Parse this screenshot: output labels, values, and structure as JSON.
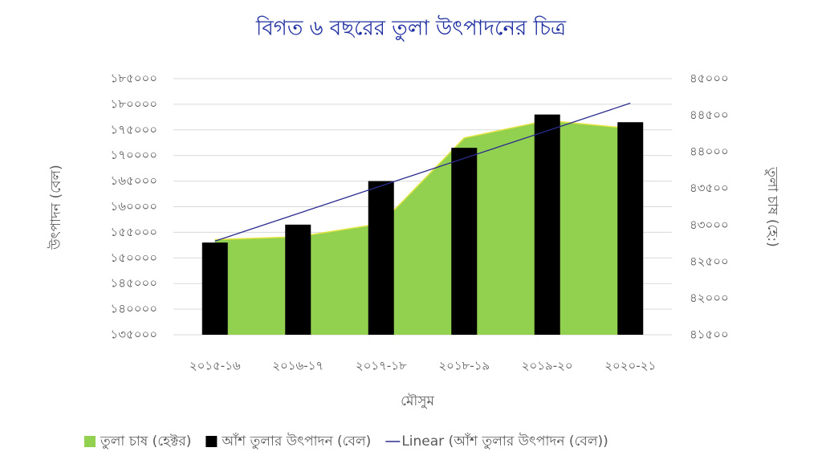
{
  "chart_data": {
    "type": "combo",
    "title": "বিগত ৬ বছরের তুলা উৎপাদনের চিত্র",
    "x_label": "মৌসুম",
    "y_label": "উৎপাদন (বেল)",
    "y2_label": "তুলা চাষ (হে:)",
    "categories": [
      "২০১৫-১৬",
      "২০১৬-১৭",
      "২০১৭-১৮",
      "২০১৮-১৯",
      "২০১৯-২০",
      "২০২০-২১"
    ],
    "series": [
      {
        "name": "তুলা চাষ (হেক্টর)",
        "type": "area",
        "axis": "y2",
        "color": "#92d050",
        "values": [
          42800,
          42840,
          43020,
          44190,
          44430,
          44320
        ]
      },
      {
        "name": "আঁশ তুলার উৎপাদন (বেল)",
        "type": "bar",
        "color": "#000000",
        "values": [
          153000,
          156500,
          165000,
          171500,
          178000,
          176500
        ]
      },
      {
        "name": "Linear (আঁশ তুলার উৎপাদন (বেল))",
        "type": "trendline",
        "trend": "linear",
        "of": 1,
        "color": "#2b2b8f"
      }
    ],
    "ylim": [
      135000,
      185000
    ],
    "yticks": [
      {
        "value": 135000,
        "label": "১৩৫০০০"
      },
      {
        "value": 140000,
        "label": "১৪০০০০"
      },
      {
        "value": 145000,
        "label": "১৪৫০০০"
      },
      {
        "value": 150000,
        "label": "১৫০০০০"
      },
      {
        "value": 155000,
        "label": "১৫৫০০০"
      },
      {
        "value": 160000,
        "label": "১৬০০০০"
      },
      {
        "value": 165000,
        "label": "১৬৫০০০"
      },
      {
        "value": 170000,
        "label": "১৭০০০০"
      },
      {
        "value": 175000,
        "label": "১৭৫০০০"
      },
      {
        "value": 180000,
        "label": "১৮০০০০"
      },
      {
        "value": 185000,
        "label": "১৮৫০০০"
      }
    ],
    "y2lim": [
      41500,
      45000
    ],
    "y2ticks": [
      {
        "value": 41500,
        "label": "৪১৫০০"
      },
      {
        "value": 42000,
        "label": "৪২০০০"
      },
      {
        "value": 42500,
        "label": "৪২৫০০"
      },
      {
        "value": 43000,
        "label": "৪৩০০০"
      },
      {
        "value": 43500,
        "label": "৪৩৫০০"
      },
      {
        "value": 44000,
        "label": "৪৪০০০"
      },
      {
        "value": 44500,
        "label": "৪৪৫০০"
      },
      {
        "value": 45000,
        "label": "৪৫০০০"
      }
    ],
    "grid": true,
    "legend": "bottom"
  }
}
